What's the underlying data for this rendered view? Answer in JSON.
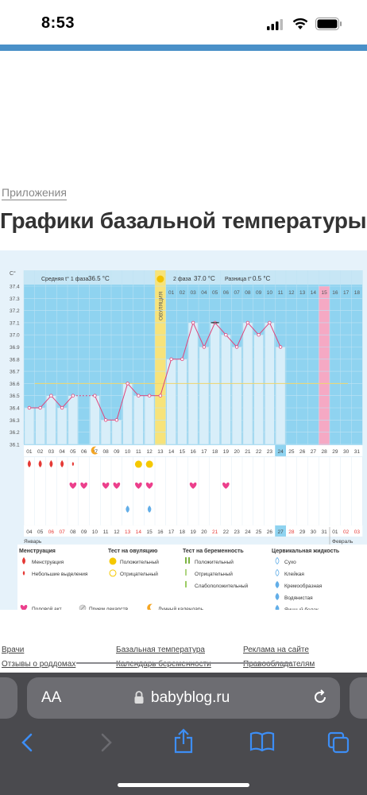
{
  "status_bar": {
    "time": "8:53"
  },
  "article": {
    "breadcrumb": "Приложения",
    "title": "Графики базальной температуры"
  },
  "chart_header": {
    "unit": "C°",
    "phase1_label": "Средняя t° 1 фаза",
    "phase1_value": "36.5 °C",
    "ovulation_label": "ОВУЛЯЦИЯ",
    "phase2_label": "2 фаза",
    "phase2_value": "37.0 °C",
    "diff_label": "Разница t°",
    "diff_value": "0.5 °C"
  },
  "chart_data": {
    "type": "line",
    "title": "",
    "y_ticks": [
      "37.4",
      "37.3",
      "37.2",
      "37.1",
      "37.0",
      "36.9",
      "36.8",
      "36.7",
      "36.6",
      "36.5",
      "36.4",
      "36.3",
      "36.2",
      "36.1"
    ],
    "ylim": [
      36.1,
      37.4
    ],
    "cycle_days": [
      "01",
      "02",
      "03",
      "04",
      "05",
      "06",
      "07",
      "08",
      "09",
      "10",
      "11",
      "12",
      "13",
      "14",
      "15",
      "16",
      "17",
      "18",
      "19",
      "20",
      "21",
      "22",
      "23",
      "24",
      "25",
      "26",
      "27",
      "28",
      "29",
      "30",
      "31",
      "01",
      "02",
      "03",
      "04",
      "05",
      "06",
      "07",
      "08",
      "09",
      "10",
      "11",
      "12",
      "13",
      "14",
      "15",
      "16",
      "17",
      "18"
    ],
    "phase2_day_labels": [
      "01",
      "02",
      "03",
      "04",
      "05",
      "06",
      "07",
      "08",
      "09",
      "10",
      "11",
      "12",
      "13",
      "14",
      "15",
      "16",
      "17",
      "18"
    ],
    "temperatures": [
      36.4,
      36.4,
      36.5,
      36.4,
      36.5,
      null,
      36.5,
      36.3,
      36.3,
      36.6,
      36.5,
      36.5,
      36.5,
      36.8,
      36.8,
      37.1,
      36.9,
      37.1,
      37.0,
      36.9,
      37.1,
      37.0,
      37.1,
      36.9
    ],
    "ovulation_day_index": 12,
    "highlight_day_index": 23,
    "pink_day_index": 27,
    "coverline": 36.6,
    "dates": [
      "04",
      "05",
      "06",
      "07",
      "08",
      "09",
      "10",
      "11",
      "12",
      "13",
      "14",
      "15",
      "16",
      "17",
      "18",
      "19",
      "20",
      "21",
      "22",
      "23",
      "24",
      "25",
      "26",
      "27",
      "28",
      "29",
      "30",
      "31",
      "01",
      "02",
      "03"
    ],
    "red_date_indices": [
      2,
      3,
      9,
      10,
      17,
      24,
      29,
      30
    ],
    "month_january": "Январь",
    "month_february": "Февраль",
    "menstruation_days": [
      0,
      1,
      2,
      3,
      4
    ],
    "intercourse_days": [
      4,
      5,
      7,
      8,
      10,
      11,
      15,
      18
    ],
    "lunar_day": 6,
    "ovulation_positive_days": [
      10,
      11
    ],
    "water_fluid_days": [
      9,
      11
    ]
  },
  "legend": {
    "col1_title": "Менструация",
    "col1_items": [
      "Менструация",
      "Небольшие выделения"
    ],
    "col2_title": "Тест на овуляцию",
    "col2_items": [
      "Положительный",
      "Отрицательный"
    ],
    "col3_title": "Тест на беременность",
    "col3_items": [
      "Положительный",
      "Отрицательный",
      "Слабоположительный"
    ],
    "col4_title": "Цервикальная жидкость",
    "col4_items": [
      "Сухо",
      "Клейкая",
      "Кремообразная",
      "Водянистая",
      "Яичный белок"
    ],
    "bottom_items": [
      "Половой акт",
      "Прием лекарств",
      "Лунный календарь"
    ]
  },
  "footer": {
    "links": [
      "Врачи",
      "Базальная температура",
      "Реклама на сайте",
      "Отзывы о роддомах",
      "Календарь беременности",
      "Правообладателям"
    ]
  },
  "browser": {
    "text_size_button": "AA",
    "url": "babyblog.ru"
  },
  "colors": {
    "accent": "#4a90c8",
    "chart_bg": "#8fd3f0",
    "ovulation": "#f7e37a",
    "line": "#e0457b"
  }
}
